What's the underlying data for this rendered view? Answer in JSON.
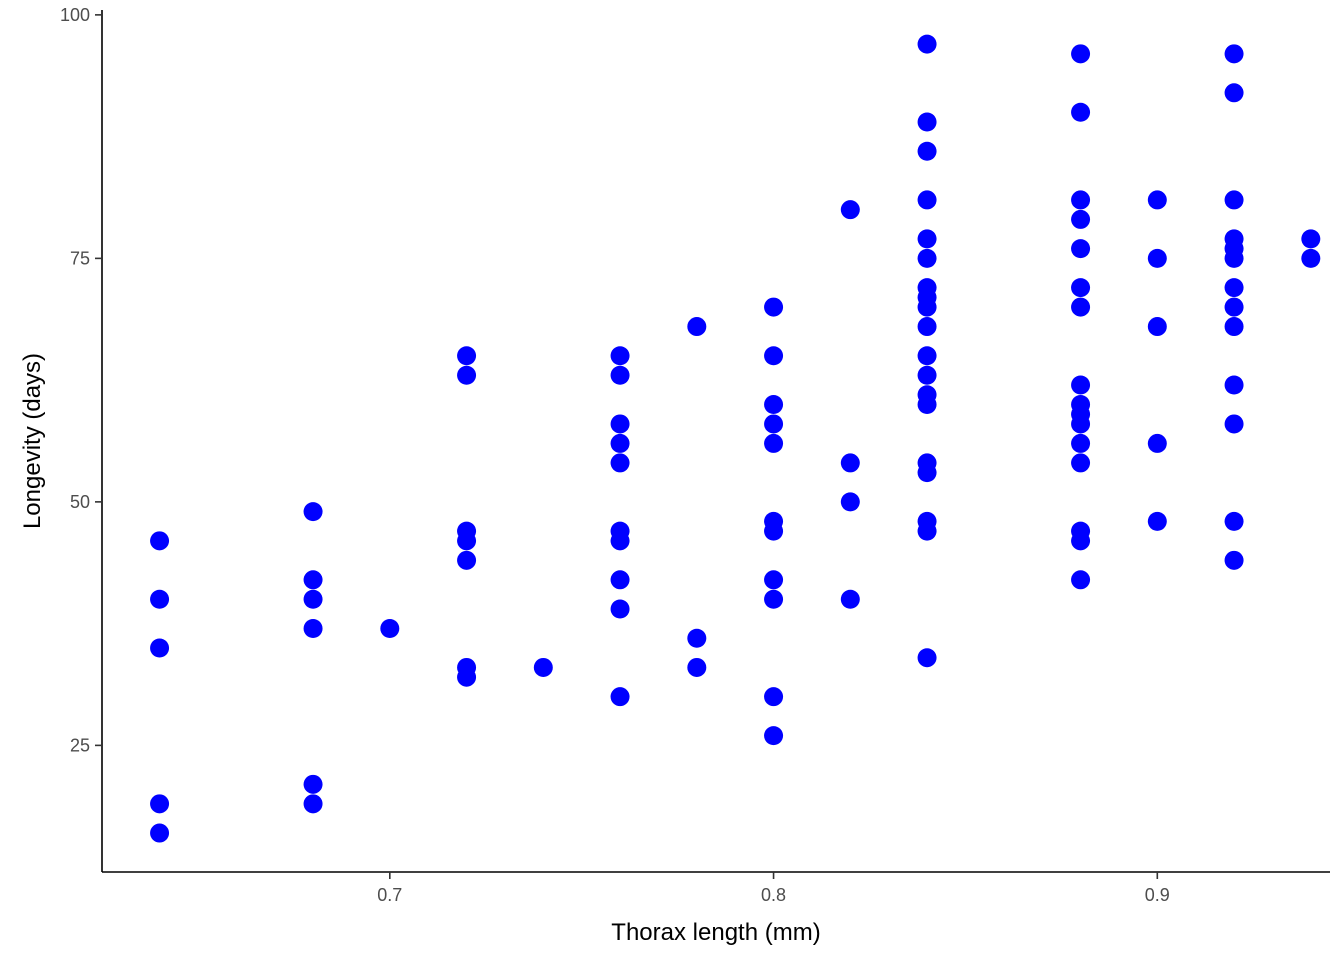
{
  "chart_data": {
    "type": "scatter",
    "xlabel": "Thorax length (mm)",
    "ylabel": "Longevity (days)",
    "xlim": [
      0.625,
      0.945
    ],
    "ylim": [
      12,
      100.5
    ],
    "x_ticks": [
      0.7,
      0.8,
      0.9
    ],
    "x_tick_labels": [
      "0.7",
      "0.8",
      "0.9"
    ],
    "y_ticks": [
      25,
      50,
      75,
      100
    ],
    "y_tick_labels": [
      "25",
      "50",
      "75",
      "100"
    ],
    "grid": false,
    "point_color": "#0000ff",
    "points": [
      [
        0.64,
        46
      ],
      [
        0.64,
        40
      ],
      [
        0.64,
        35
      ],
      [
        0.64,
        19
      ],
      [
        0.64,
        16
      ],
      [
        0.68,
        49
      ],
      [
        0.68,
        42
      ],
      [
        0.68,
        40
      ],
      [
        0.68,
        37
      ],
      [
        0.68,
        21
      ],
      [
        0.68,
        19
      ],
      [
        0.7,
        37
      ],
      [
        0.72,
        65
      ],
      [
        0.72,
        63
      ],
      [
        0.72,
        47
      ],
      [
        0.72,
        46
      ],
      [
        0.72,
        44
      ],
      [
        0.72,
        33
      ],
      [
        0.72,
        32
      ],
      [
        0.74,
        33
      ],
      [
        0.76,
        65
      ],
      [
        0.76,
        63
      ],
      [
        0.76,
        58
      ],
      [
        0.76,
        56
      ],
      [
        0.76,
        54
      ],
      [
        0.76,
        47
      ],
      [
        0.76,
        46
      ],
      [
        0.76,
        42
      ],
      [
        0.76,
        39
      ],
      [
        0.76,
        30
      ],
      [
        0.78,
        68
      ],
      [
        0.78,
        36
      ],
      [
        0.78,
        33
      ],
      [
        0.8,
        70
      ],
      [
        0.8,
        65
      ],
      [
        0.8,
        60
      ],
      [
        0.8,
        58
      ],
      [
        0.8,
        56
      ],
      [
        0.8,
        48
      ],
      [
        0.8,
        47
      ],
      [
        0.8,
        42
      ],
      [
        0.8,
        40
      ],
      [
        0.8,
        30
      ],
      [
        0.8,
        26
      ],
      [
        0.82,
        80
      ],
      [
        0.82,
        54
      ],
      [
        0.82,
        50
      ],
      [
        0.82,
        40
      ],
      [
        0.84,
        97
      ],
      [
        0.84,
        89
      ],
      [
        0.84,
        86
      ],
      [
        0.84,
        81
      ],
      [
        0.84,
        77
      ],
      [
        0.84,
        75
      ],
      [
        0.84,
        72
      ],
      [
        0.84,
        71
      ],
      [
        0.84,
        70
      ],
      [
        0.84,
        68
      ],
      [
        0.84,
        65
      ],
      [
        0.84,
        63
      ],
      [
        0.84,
        61
      ],
      [
        0.84,
        60
      ],
      [
        0.84,
        54
      ],
      [
        0.84,
        53
      ],
      [
        0.84,
        48
      ],
      [
        0.84,
        47
      ],
      [
        0.84,
        34
      ],
      [
        0.88,
        96
      ],
      [
        0.88,
        90
      ],
      [
        0.88,
        81
      ],
      [
        0.88,
        79
      ],
      [
        0.88,
        76
      ],
      [
        0.88,
        72
      ],
      [
        0.88,
        70
      ],
      [
        0.88,
        62
      ],
      [
        0.88,
        60
      ],
      [
        0.88,
        59
      ],
      [
        0.88,
        58
      ],
      [
        0.88,
        56
      ],
      [
        0.88,
        54
      ],
      [
        0.88,
        47
      ],
      [
        0.88,
        46
      ],
      [
        0.88,
        42
      ],
      [
        0.9,
        81
      ],
      [
        0.9,
        75
      ],
      [
        0.9,
        68
      ],
      [
        0.9,
        56
      ],
      [
        0.9,
        48
      ],
      [
        0.92,
        96
      ],
      [
        0.92,
        92
      ],
      [
        0.92,
        81
      ],
      [
        0.92,
        77
      ],
      [
        0.92,
        76
      ],
      [
        0.92,
        75
      ],
      [
        0.92,
        72
      ],
      [
        0.92,
        70
      ],
      [
        0.92,
        68
      ],
      [
        0.92,
        62
      ],
      [
        0.92,
        58
      ],
      [
        0.92,
        48
      ],
      [
        0.92,
        44
      ],
      [
        0.94,
        77
      ],
      [
        0.94,
        75
      ]
    ]
  }
}
